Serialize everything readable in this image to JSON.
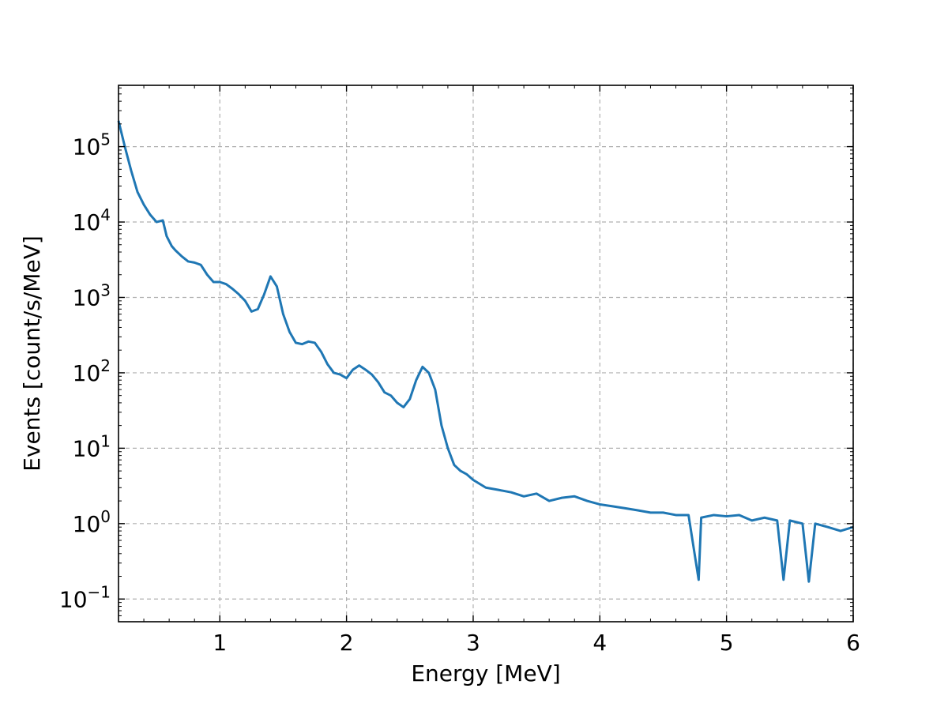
{
  "chart_data": {
    "type": "line",
    "title": "",
    "xlabel": "Energy [MeV]",
    "ylabel": "Events [count/s/MeV]",
    "xlim": [
      0.2,
      6.0
    ],
    "ylim": [
      0.05,
      650000
    ],
    "yscale": "log",
    "grid": true,
    "x_ticks": [
      1,
      2,
      3,
      4,
      5,
      6
    ],
    "x_tick_labels": [
      "1",
      "2",
      "3",
      "4",
      "5",
      "6"
    ],
    "y_ticks": [
      0.1,
      1,
      10,
      100,
      1000,
      10000,
      100000
    ],
    "y_tick_labels": [
      {
        "base": "10",
        "exp": "−1"
      },
      {
        "base": "10",
        "exp": "0"
      },
      {
        "base": "10",
        "exp": "1"
      },
      {
        "base": "10",
        "exp": "2"
      },
      {
        "base": "10",
        "exp": "3"
      },
      {
        "base": "10",
        "exp": "4"
      },
      {
        "base": "10",
        "exp": "5"
      }
    ],
    "colors": {
      "series": "#1f77b4",
      "grid": "#b0b0b0",
      "axes": "#000000"
    },
    "series": [
      {
        "x": [
          0.2,
          0.25,
          0.3,
          0.35,
          0.4,
          0.45,
          0.5,
          0.55,
          0.58,
          0.62,
          0.65,
          0.7,
          0.75,
          0.8,
          0.85,
          0.9,
          0.95,
          1.0,
          1.05,
          1.1,
          1.15,
          1.2,
          1.25,
          1.3,
          1.35,
          1.4,
          1.45,
          1.5,
          1.55,
          1.6,
          1.65,
          1.7,
          1.75,
          1.8,
          1.85,
          1.9,
          1.95,
          2.0,
          2.05,
          2.1,
          2.15,
          2.2,
          2.25,
          2.3,
          2.35,
          2.4,
          2.45,
          2.5,
          2.55,
          2.6,
          2.65,
          2.7,
          2.75,
          2.8,
          2.85,
          2.9,
          2.95,
          3.0,
          3.1,
          3.2,
          3.3,
          3.4,
          3.5,
          3.6,
          3.7,
          3.8,
          3.9,
          4.0,
          4.1,
          4.2,
          4.3,
          4.4,
          4.5,
          4.6,
          4.7,
          4.78,
          4.8,
          4.9,
          5.0,
          5.1,
          5.2,
          5.3,
          5.4,
          5.45,
          5.5,
          5.6,
          5.65,
          5.7,
          5.8,
          5.9,
          6.0
        ],
        "y": [
          220000,
          100000,
          48000,
          25000,
          17000,
          12500,
          10000,
          10500,
          6500,
          4800,
          4200,
          3500,
          3000,
          2900,
          2700,
          2000,
          1600,
          1600,
          1500,
          1300,
          1100,
          900,
          650,
          700,
          1100,
          1900,
          1400,
          600,
          350,
          250,
          240,
          260,
          250,
          190,
          130,
          100,
          95,
          85,
          110,
          125,
          110,
          95,
          75,
          55,
          50,
          40,
          35,
          45,
          80,
          120,
          100,
          60,
          20,
          10,
          6,
          5,
          4.5,
          3.8,
          3.0,
          2.8,
          2.6,
          2.3,
          2.5,
          2.0,
          2.2,
          2.3,
          2.0,
          1.8,
          1.7,
          1.6,
          1.5,
          1.4,
          1.4,
          1.3,
          1.3,
          0.18,
          1.2,
          1.3,
          1.25,
          1.3,
          1.1,
          1.2,
          1.1,
          0.18,
          1.1,
          1.0,
          0.17,
          1.0,
          0.9,
          0.8,
          0.9
        ]
      }
    ]
  }
}
